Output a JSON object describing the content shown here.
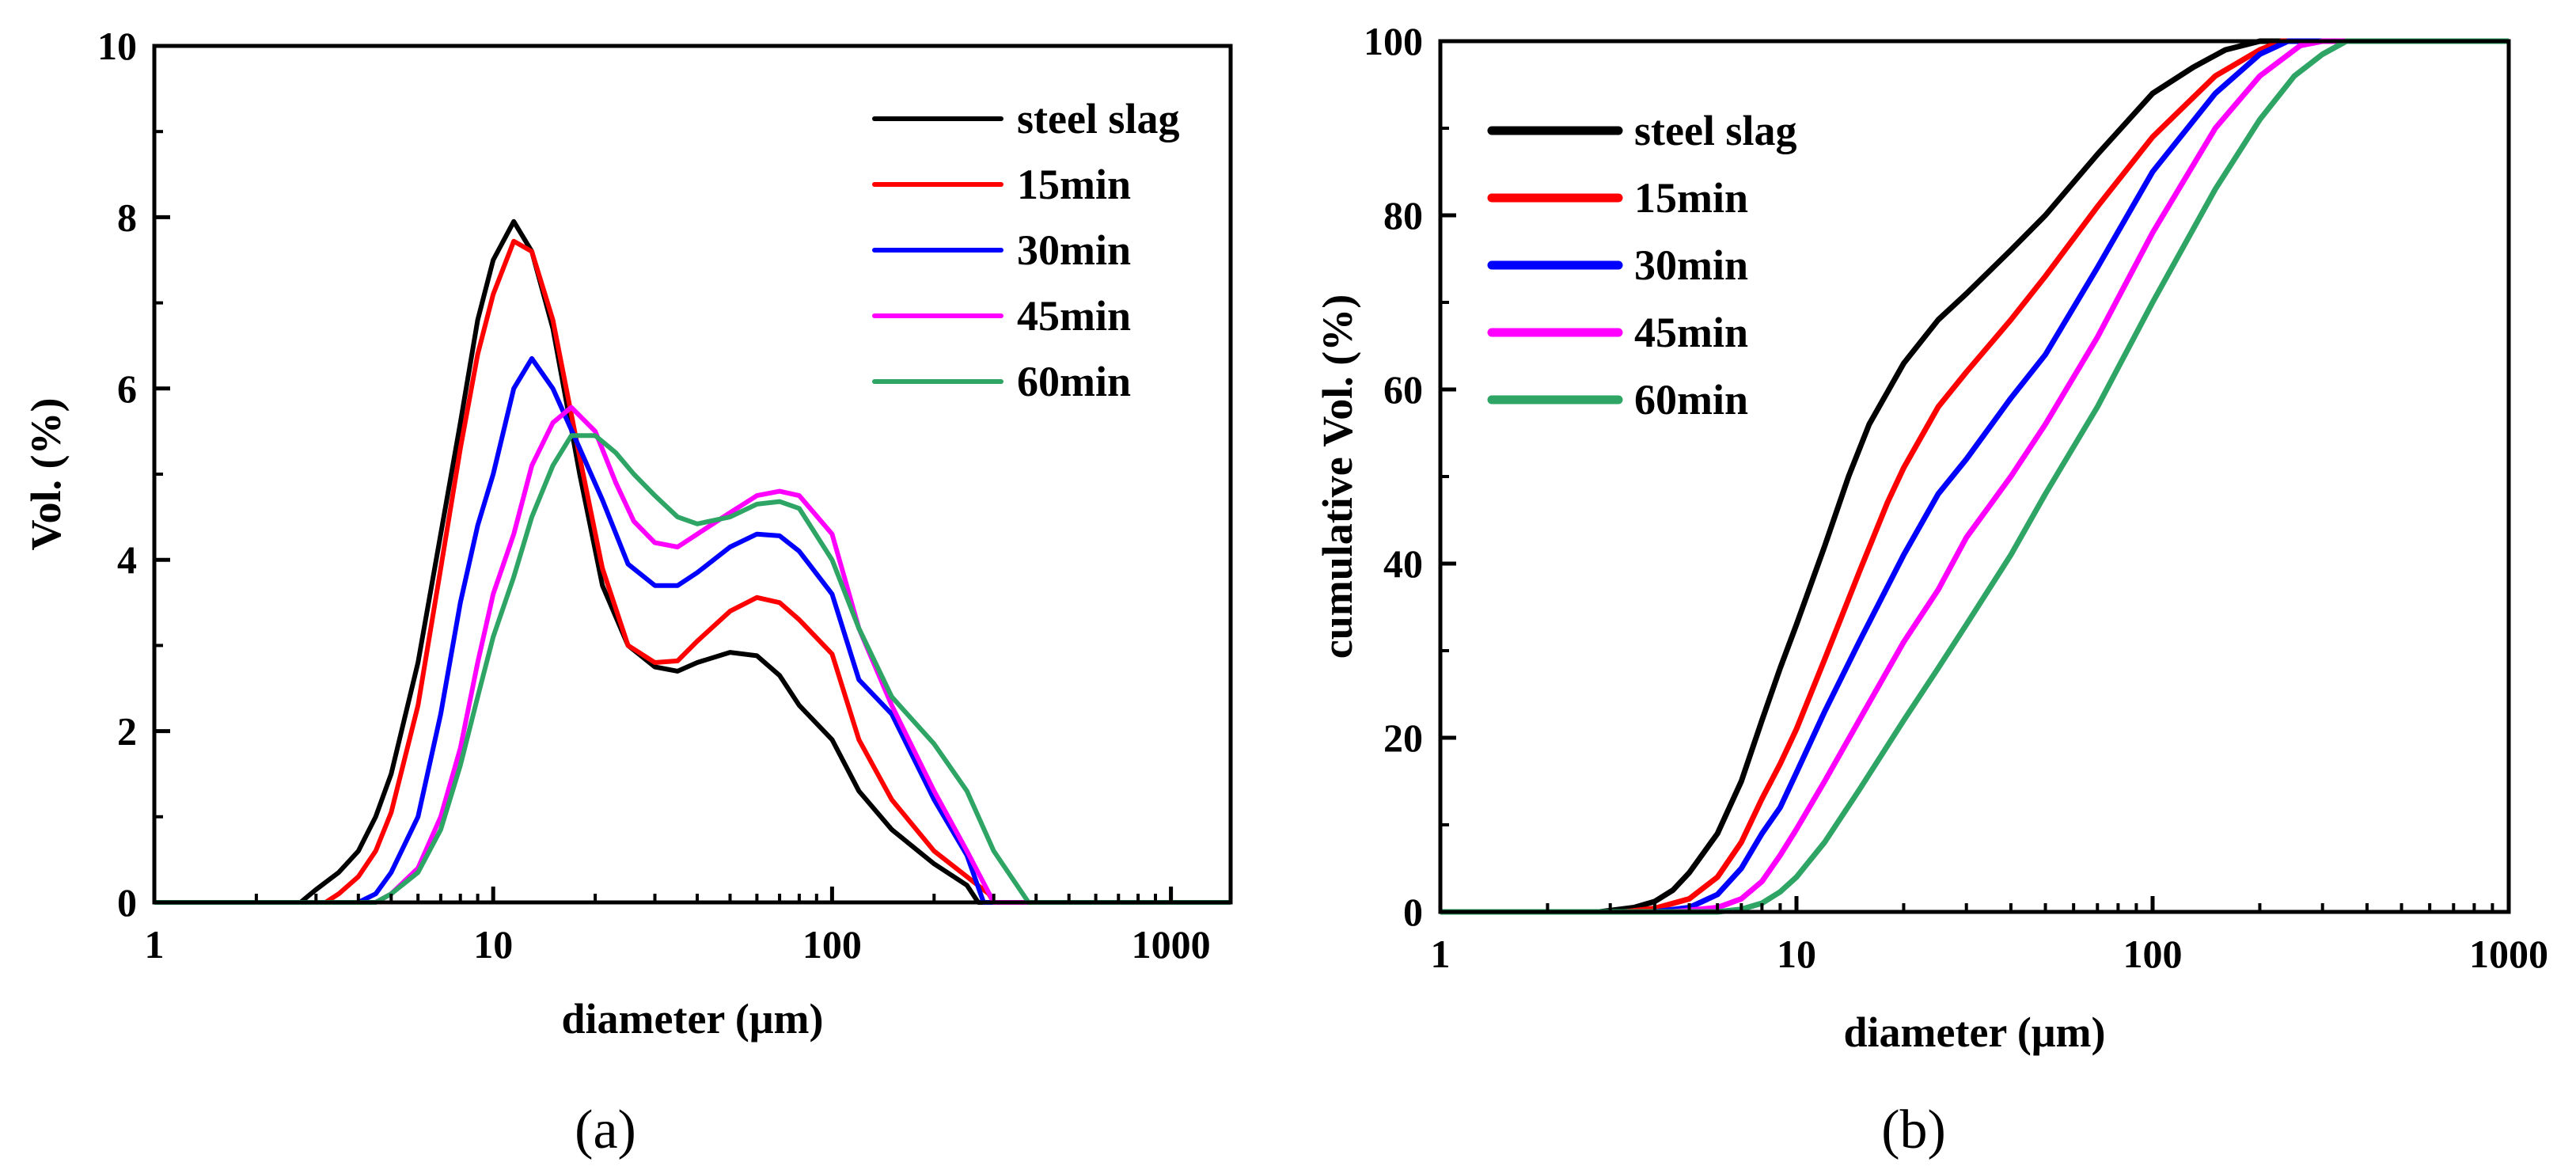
{
  "figure": {
    "panel_labels": [
      "(a)",
      "(b)"
    ]
  },
  "colors": {
    "steel slag": "#000000",
    "15min": "#ff0000",
    "30min": "#0000ff",
    "45min": "#ff00ff",
    "60min": "#2ea564"
  },
  "chart_data": [
    {
      "panel": "(a)",
      "type": "line",
      "xscale": "log",
      "xlabel": "diameter (μm)",
      "ylabel": "Vol. (%)",
      "xlim": [
        1,
        1500
      ],
      "ylim": [
        0,
        10
      ],
      "xticks": [
        1,
        10,
        100,
        1000
      ],
      "xtick_labels": [
        "1",
        "10",
        "100",
        "1000"
      ],
      "yticks": [
        0,
        2,
        4,
        6,
        8,
        10
      ],
      "ytick_labels": [
        "0",
        "2",
        "4",
        "6",
        "8",
        "10"
      ],
      "legend_position": "top-right",
      "series": [
        {
          "name": "steel slag",
          "points": [
            [
              1,
              0
            ],
            [
              2.7,
              0
            ],
            [
              3,
              0.15
            ],
            [
              3.5,
              0.35
            ],
            [
              4,
              0.6
            ],
            [
              4.5,
              1.0
            ],
            [
              5,
              1.5
            ],
            [
              6,
              2.8
            ],
            [
              7,
              4.3
            ],
            [
              8,
              5.6
            ],
            [
              9,
              6.8
            ],
            [
              10,
              7.5
            ],
            [
              11.5,
              7.95
            ],
            [
              13,
              7.6
            ],
            [
              15,
              6.7
            ],
            [
              18,
              5.0
            ],
            [
              21,
              3.7
            ],
            [
              25,
              3.0
            ],
            [
              30,
              2.75
            ],
            [
              35,
              2.7
            ],
            [
              40,
              2.8
            ],
            [
              50,
              2.92
            ],
            [
              60,
              2.88
            ],
            [
              70,
              2.65
            ],
            [
              80,
              2.3
            ],
            [
              100,
              1.9
            ],
            [
              120,
              1.3
            ],
            [
              150,
              0.85
            ],
            [
              200,
              0.45
            ],
            [
              250,
              0.2
            ],
            [
              270,
              0
            ],
            [
              1500,
              0
            ]
          ]
        },
        {
          "name": "15min",
          "points": [
            [
              1,
              0
            ],
            [
              3.2,
              0
            ],
            [
              3.5,
              0.1
            ],
            [
              4,
              0.3
            ],
            [
              4.5,
              0.6
            ],
            [
              5,
              1.05
            ],
            [
              6,
              2.3
            ],
            [
              7,
              3.9
            ],
            [
              8,
              5.3
            ],
            [
              9,
              6.4
            ],
            [
              10,
              7.1
            ],
            [
              11.5,
              7.72
            ],
            [
              13,
              7.6
            ],
            [
              15,
              6.8
            ],
            [
              18,
              5.2
            ],
            [
              21,
              3.9
            ],
            [
              25,
              3.0
            ],
            [
              30,
              2.8
            ],
            [
              35,
              2.82
            ],
            [
              40,
              3.05
            ],
            [
              50,
              3.4
            ],
            [
              60,
              3.56
            ],
            [
              70,
              3.5
            ],
            [
              80,
              3.3
            ],
            [
              100,
              2.9
            ],
            [
              120,
              1.9
            ],
            [
              150,
              1.2
            ],
            [
              200,
              0.6
            ],
            [
              250,
              0.3
            ],
            [
              290,
              0.1
            ],
            [
              300,
              0
            ],
            [
              1500,
              0
            ]
          ]
        },
        {
          "name": "30min",
          "points": [
            [
              1,
              0
            ],
            [
              4,
              0
            ],
            [
              4.5,
              0.1
            ],
            [
              5,
              0.35
            ],
            [
              6,
              1.0
            ],
            [
              7,
              2.2
            ],
            [
              8,
              3.5
            ],
            [
              9,
              4.4
            ],
            [
              10,
              5.0
            ],
            [
              11.5,
              6.0
            ],
            [
              13,
              6.35
            ],
            [
              15,
              6.0
            ],
            [
              18,
              5.3
            ],
            [
              21,
              4.7
            ],
            [
              25,
              3.95
            ],
            [
              30,
              3.7
            ],
            [
              35,
              3.7
            ],
            [
              40,
              3.85
            ],
            [
              50,
              4.15
            ],
            [
              60,
              4.3
            ],
            [
              70,
              4.28
            ],
            [
              80,
              4.1
            ],
            [
              100,
              3.6
            ],
            [
              120,
              2.6
            ],
            [
              150,
              2.2
            ],
            [
              200,
              1.2
            ],
            [
              250,
              0.55
            ],
            [
              280,
              0
            ],
            [
              1500,
              0
            ]
          ]
        },
        {
          "name": "45min",
          "points": [
            [
              1,
              0
            ],
            [
              4.5,
              0
            ],
            [
              5,
              0.1
            ],
            [
              6,
              0.4
            ],
            [
              7,
              1.0
            ],
            [
              8,
              1.8
            ],
            [
              9,
              2.8
            ],
            [
              10,
              3.6
            ],
            [
              11.5,
              4.3
            ],
            [
              13,
              5.1
            ],
            [
              15,
              5.6
            ],
            [
              17,
              5.78
            ],
            [
              20,
              5.5
            ],
            [
              23,
              4.9
            ],
            [
              26,
              4.45
            ],
            [
              30,
              4.2
            ],
            [
              35,
              4.15
            ],
            [
              40,
              4.3
            ],
            [
              50,
              4.55
            ],
            [
              60,
              4.75
            ],
            [
              70,
              4.8
            ],
            [
              80,
              4.75
            ],
            [
              100,
              4.3
            ],
            [
              120,
              3.2
            ],
            [
              150,
              2.3
            ],
            [
              200,
              1.3
            ],
            [
              250,
              0.6
            ],
            [
              300,
              0
            ],
            [
              1500,
              0
            ]
          ]
        },
        {
          "name": "60min",
          "points": [
            [
              1,
              0
            ],
            [
              4.5,
              0
            ],
            [
              5,
              0.1
            ],
            [
              6,
              0.35
            ],
            [
              7,
              0.85
            ],
            [
              8,
              1.6
            ],
            [
              9,
              2.4
            ],
            [
              10,
              3.1
            ],
            [
              11.5,
              3.8
            ],
            [
              13,
              4.5
            ],
            [
              15,
              5.1
            ],
            [
              17,
              5.45
            ],
            [
              20,
              5.45
            ],
            [
              23,
              5.25
            ],
            [
              26,
              5.0
            ],
            [
              30,
              4.75
            ],
            [
              35,
              4.5
            ],
            [
              40,
              4.42
            ],
            [
              50,
              4.5
            ],
            [
              60,
              4.65
            ],
            [
              70,
              4.68
            ],
            [
              80,
              4.6
            ],
            [
              100,
              4.0
            ],
            [
              120,
              3.2
            ],
            [
              150,
              2.4
            ],
            [
              200,
              1.85
            ],
            [
              250,
              1.3
            ],
            [
              300,
              0.6
            ],
            [
              380,
              0
            ],
            [
              1500,
              0
            ]
          ]
        }
      ]
    },
    {
      "panel": "(b)",
      "type": "line",
      "xscale": "log",
      "xlabel": "diameter (μm)",
      "ylabel": "cumulative Vol. (%)",
      "xlim": [
        1,
        1000
      ],
      "ylim": [
        0,
        100
      ],
      "xticks": [
        1,
        10,
        100,
        1000
      ],
      "xtick_labels": [
        "1",
        "10",
        "100",
        "1000"
      ],
      "yticks": [
        0,
        20,
        40,
        60,
        80,
        100
      ],
      "ytick_labels": [
        "0",
        "20",
        "40",
        "60",
        "80",
        "100"
      ],
      "legend_position": "top-left",
      "series": [
        {
          "name": "steel slag",
          "points": [
            [
              1,
              0
            ],
            [
              2.8,
              0
            ],
            [
              3.5,
              0.5
            ],
            [
              4,
              1.2
            ],
            [
              4.5,
              2.5
            ],
            [
              5,
              4.5
            ],
            [
              6,
              9
            ],
            [
              7,
              15
            ],
            [
              8,
              22
            ],
            [
              9,
              28
            ],
            [
              10,
              33
            ],
            [
              12,
              42
            ],
            [
              14,
              50
            ],
            [
              16,
              56
            ],
            [
              20,
              63
            ],
            [
              25,
              68
            ],
            [
              30,
              71
            ],
            [
              40,
              76
            ],
            [
              50,
              80
            ],
            [
              70,
              87
            ],
            [
              100,
              94
            ],
            [
              130,
              97
            ],
            [
              160,
              99
            ],
            [
              200,
              100
            ],
            [
              1000,
              100
            ]
          ]
        },
        {
          "name": "15min",
          "points": [
            [
              1,
              0
            ],
            [
              3.3,
              0
            ],
            [
              4,
              0.4
            ],
            [
              5,
              1.5
            ],
            [
              6,
              4
            ],
            [
              7,
              8
            ],
            [
              8,
              13
            ],
            [
              9,
              17
            ],
            [
              10,
              21
            ],
            [
              12,
              29
            ],
            [
              15,
              39
            ],
            [
              18,
              47
            ],
            [
              20,
              51
            ],
            [
              25,
              58
            ],
            [
              30,
              62
            ],
            [
              40,
              68
            ],
            [
              50,
              73
            ],
            [
              70,
              81
            ],
            [
              100,
              89
            ],
            [
              150,
              96
            ],
            [
              200,
              99
            ],
            [
              230,
              100
            ],
            [
              1000,
              100
            ]
          ]
        },
        {
          "name": "30min",
          "points": [
            [
              1,
              0
            ],
            [
              4,
              0
            ],
            [
              5,
              0.5
            ],
            [
              6,
              2
            ],
            [
              7,
              5
            ],
            [
              8,
              9
            ],
            [
              9,
              12
            ],
            [
              10,
              16
            ],
            [
              12,
              23
            ],
            [
              15,
              31
            ],
            [
              20,
              41
            ],
            [
              25,
              48
            ],
            [
              30,
              52
            ],
            [
              40,
              59
            ],
            [
              50,
              64
            ],
            [
              70,
              74
            ],
            [
              100,
              85
            ],
            [
              150,
              94
            ],
            [
              200,
              98.5
            ],
            [
              240,
              100
            ],
            [
              1000,
              100
            ]
          ]
        },
        {
          "name": "45min",
          "points": [
            [
              1,
              0
            ],
            [
              4.5,
              0
            ],
            [
              6,
              0.5
            ],
            [
              7,
              1.5
            ],
            [
              8,
              3.5
            ],
            [
              9,
              6.5
            ],
            [
              10,
              9.5
            ],
            [
              12,
              15
            ],
            [
              15,
              22
            ],
            [
              20,
              31
            ],
            [
              25,
              37
            ],
            [
              30,
              43
            ],
            [
              40,
              50
            ],
            [
              50,
              56
            ],
            [
              70,
              66
            ],
            [
              100,
              78
            ],
            [
              150,
              90
            ],
            [
              200,
              96
            ],
            [
              260,
              99.5
            ],
            [
              300,
              100
            ],
            [
              1000,
              100
            ]
          ]
        },
        {
          "name": "60min",
          "points": [
            [
              1,
              0
            ],
            [
              6,
              0
            ],
            [
              7,
              0.3
            ],
            [
              8,
              1
            ],
            [
              9,
              2.3
            ],
            [
              10,
              4
            ],
            [
              12,
              8
            ],
            [
              15,
              14
            ],
            [
              20,
              22
            ],
            [
              25,
              28
            ],
            [
              30,
              33
            ],
            [
              40,
              41
            ],
            [
              50,
              48
            ],
            [
              70,
              58
            ],
            [
              100,
              70
            ],
            [
              150,
              83
            ],
            [
              200,
              91
            ],
            [
              250,
              96
            ],
            [
              300,
              98.5
            ],
            [
              350,
              100
            ],
            [
              1000,
              100
            ]
          ]
        }
      ]
    }
  ]
}
